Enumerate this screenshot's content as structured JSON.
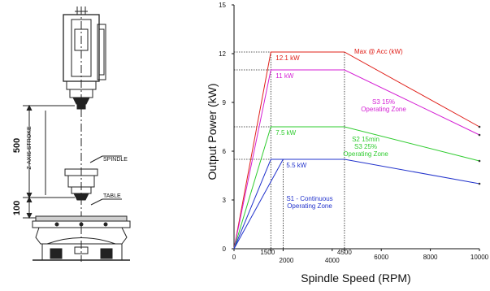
{
  "drawing": {
    "labels": {
      "z_axis_stroke": "Z-AXIS STROKE",
      "spindle": "SPINDLE",
      "table": "TABLE",
      "dim_500": "500",
      "dim_100": "100"
    }
  },
  "chart_data": {
    "type": "line",
    "title": "",
    "xlabel": "Spindle Speed (RPM)",
    "ylabel": "Output Power (kW)",
    "xlim": [
      0,
      10000
    ],
    "ylim": [
      0,
      15
    ],
    "x_ticks": [
      0,
      1500,
      2000,
      4000,
      4500,
      6000,
      8000,
      10000
    ],
    "y_ticks": [
      0,
      3,
      6,
      9,
      12,
      15
    ],
    "grid": false,
    "series": [
      {
        "name": "Max @ Acc (kW)",
        "color": "#e0201a",
        "points": [
          [
            0,
            0
          ],
          [
            1500,
            12.1
          ],
          [
            4500,
            12.1
          ],
          [
            10000,
            7.5
          ]
        ],
        "value_label": "12.1 kW"
      },
      {
        "name": "S3 15% Operating Zone",
        "color": "#d41fd4",
        "points": [
          [
            0,
            0
          ],
          [
            1500,
            11
          ],
          [
            4500,
            11
          ],
          [
            10000,
            7
          ]
        ],
        "value_label": "11 kW"
      },
      {
        "name": "S2 15min S3 25% Operating Zone",
        "color": "#2fcc2f",
        "points": [
          [
            0,
            0
          ],
          [
            1500,
            7.5
          ],
          [
            4500,
            7.5
          ],
          [
            10000,
            5.4
          ]
        ],
        "value_label": "7.5 kW"
      },
      {
        "name": "S1 - Continuous Operating Zone",
        "color": "#2233cc",
        "points": [
          [
            0,
            0
          ],
          [
            1500,
            5.5
          ],
          [
            2000,
            5.5
          ],
          [
            4500,
            5.5
          ],
          [
            10000,
            4
          ]
        ],
        "value_label": "5.5 kW"
      }
    ],
    "extra_lines": [
      {
        "color": "#2233cc",
        "points": [
          [
            0,
            0
          ],
          [
            2000,
            5.5
          ]
        ]
      }
    ],
    "zone_labels": [
      {
        "lines": [
          "Max @ Acc (kW)"
        ],
        "color": "#e0201a"
      },
      {
        "lines": [
          "S3 15%",
          "Operating Zone"
        ],
        "color": "#d41fd4"
      },
      {
        "lines": [
          "S2 15min",
          "S3 25%",
          "Operating Zone"
        ],
        "color": "#2fcc2f"
      },
      {
        "lines": [
          "S1 - Continuous",
          "Operating Zone"
        ],
        "color": "#2233cc"
      }
    ],
    "reference_lines": {
      "horizontal": [
        12.1,
        11,
        7.5,
        5.5
      ],
      "vertical": [
        1500,
        2000,
        4500
      ]
    }
  }
}
